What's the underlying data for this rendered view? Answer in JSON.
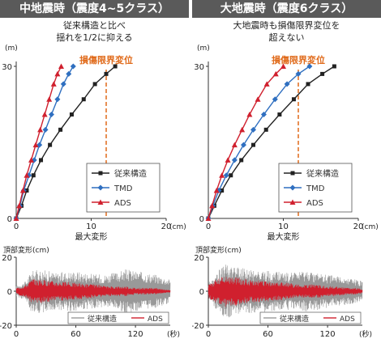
{
  "panels": [
    {
      "title": "中地震時（震度4~5クラス）",
      "subtitle": [
        "従来構造と比べ",
        "揺れを1/2に抑える"
      ]
    },
    {
      "title": "大地震時（震度6クラス）",
      "subtitle": [
        "大地震時も損傷限界変位を",
        "超えない"
      ]
    }
  ],
  "colors": {
    "conventional": "#222222",
    "tmd": "#2f6fc0",
    "ads": "#d0202e",
    "limit": "#e06a1a",
    "wave_gray": "#999999",
    "header_bg": "#5a5a5a"
  },
  "chart_data": [
    {
      "type": "line",
      "title": "中地震時（震度4~5クラス）",
      "xlabel": "最大変形",
      "x_unit": "(cm)",
      "y_unit": "(m)",
      "xlim": [
        0,
        20
      ],
      "ylim": [
        0,
        30
      ],
      "xticks": [
        "0",
        "10",
        "20"
      ],
      "yticks": [
        "0",
        "30"
      ],
      "limit_line": {
        "x": 12,
        "label": "損傷限界変位"
      },
      "legend": [
        "従来構造",
        "TMD",
        "ADS"
      ],
      "series": [
        {
          "name": "従来構造",
          "x": [
            0,
            0.7,
            1.4,
            2.3,
            3.3,
            4.5,
            5.9,
            7.4,
            9.0,
            10.5,
            12.0,
            13.2
          ],
          "y": [
            0,
            2.5,
            5.5,
            8.5,
            11.5,
            14.5,
            17.5,
            20.5,
            23.5,
            26.5,
            28.5,
            30
          ]
        },
        {
          "name": "TMD",
          "x": [
            0,
            0.5,
            1.0,
            1.7,
            2.4,
            3.1,
            3.9,
            4.7,
            5.5,
            6.3,
            7.0,
            7.6
          ],
          "y": [
            0,
            2.5,
            5.5,
            8.5,
            11.5,
            14.5,
            17.5,
            20.5,
            23.5,
            26.5,
            28.5,
            30
          ]
        },
        {
          "name": "ADS",
          "x": [
            0,
            0.4,
            0.9,
            1.4,
            2.0,
            2.6,
            3.2,
            3.8,
            4.4,
            5.0,
            5.5,
            6.0
          ],
          "y": [
            0,
            2.5,
            5.5,
            8.5,
            11.5,
            14.5,
            17.5,
            20.5,
            23.5,
            26.5,
            28.5,
            30
          ]
        }
      ]
    },
    {
      "type": "line",
      "title": "大地震時（震度6クラス）",
      "xlabel": "最大変形",
      "x_unit": "(cm)",
      "y_unit": "(m)",
      "xlim": [
        0,
        20
      ],
      "ylim": [
        0,
        30
      ],
      "xticks": [
        "0",
        "10",
        "20"
      ],
      "yticks": [
        "0",
        "30"
      ],
      "limit_line": {
        "x": 12,
        "label": "損傷限界変位"
      },
      "legend": [
        "従来構造",
        "TMD",
        "ADS"
      ],
      "series": [
        {
          "name": "従来構造",
          "x": [
            0,
            0.8,
            1.8,
            3.0,
            4.4,
            6.0,
            7.7,
            9.5,
            11.4,
            13.3,
            15.2,
            16.8
          ],
          "y": [
            0,
            2.5,
            5.5,
            8.5,
            11.5,
            14.5,
            17.5,
            20.5,
            23.5,
            26.5,
            28.5,
            30
          ]
        },
        {
          "name": "TMD",
          "x": [
            0,
            0.6,
            1.4,
            2.4,
            3.5,
            4.7,
            6.0,
            7.4,
            8.9,
            10.5,
            12.0,
            13.5
          ],
          "y": [
            0,
            2.5,
            5.5,
            8.5,
            11.5,
            14.5,
            17.5,
            20.5,
            23.5,
            26.5,
            28.5,
            30
          ]
        },
        {
          "name": "ADS",
          "x": [
            0,
            0.5,
            1.1,
            1.8,
            2.6,
            3.5,
            4.5,
            5.5,
            6.6,
            7.8,
            9.0,
            10.0
          ],
          "y": [
            0,
            2.5,
            5.5,
            8.5,
            11.5,
            14.5,
            17.5,
            20.5,
            23.5,
            26.5,
            28.5,
            30
          ]
        }
      ]
    },
    {
      "type": "line",
      "title": "頂部変形(cm)",
      "xlim": [
        0,
        155
      ],
      "ylim": [
        -20,
        20
      ],
      "xticks": [
        "0",
        "60",
        "120"
      ],
      "x_unit": "(秒)",
      "yticks": [
        "20",
        "0",
        "-20"
      ],
      "legend": [
        "従来構造",
        "ADS"
      ],
      "series": [
        {
          "name": "従来構造",
          "envelope_t": [
            0,
            10,
            15,
            25,
            40,
            60,
            80,
            90,
            100,
            110,
            120,
            130,
            140,
            150,
            155
          ],
          "envelope_amp": [
            3,
            6,
            12,
            13,
            11,
            12,
            10,
            10,
            11,
            13,
            12,
            11,
            10,
            8,
            7
          ]
        },
        {
          "name": "ADS",
          "envelope_t": [
            0,
            10,
            15,
            25,
            40,
            60,
            80,
            90,
            100,
            110,
            120,
            130,
            140,
            150,
            155
          ],
          "envelope_amp": [
            2,
            4,
            7,
            7,
            6,
            5,
            4,
            3,
            3,
            3,
            2,
            2,
            2,
            1,
            1
          ]
        }
      ]
    },
    {
      "type": "line",
      "title": "頂部変形(cm)",
      "xlim": [
        0,
        155
      ],
      "ylim": [
        -20,
        20
      ],
      "xticks": [
        "0",
        "60",
        "120"
      ],
      "x_unit": "(秒)",
      "yticks": [
        "20",
        "0",
        "-20"
      ],
      "legend": [
        "従来構造",
        "ADS"
      ],
      "series": [
        {
          "name": "従来構造",
          "envelope_t": [
            0,
            10,
            15,
            25,
            40,
            60,
            80,
            90,
            100,
            110,
            120,
            130,
            140,
            150,
            155
          ],
          "envelope_amp": [
            5,
            12,
            16,
            15,
            13,
            12,
            11,
            11,
            12,
            11,
            10,
            9,
            8,
            7,
            6
          ]
        },
        {
          "name": "ADS",
          "envelope_t": [
            0,
            10,
            15,
            25,
            40,
            60,
            80,
            90,
            100,
            110,
            120,
            130,
            140,
            150,
            155
          ],
          "envelope_amp": [
            4,
            8,
            10,
            9,
            7,
            6,
            5,
            4,
            4,
            4,
            3,
            3,
            2,
            2,
            1
          ]
        }
      ]
    }
  ]
}
